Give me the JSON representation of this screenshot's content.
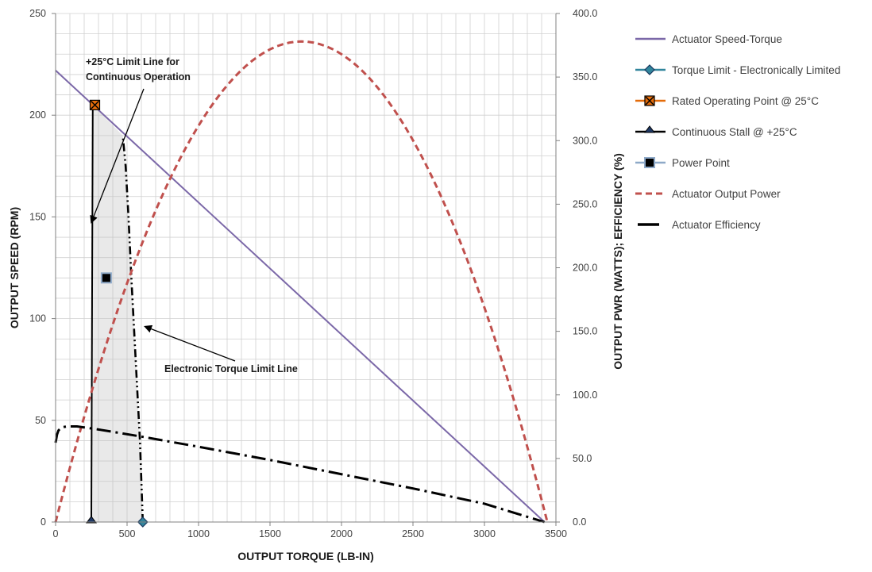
{
  "chart_data": {
    "type": "line",
    "xlabel": "OUTPUT TORQUE (LB-IN)",
    "ylabel_left": "OUTPUT SPEED (RPM)",
    "ylabel_right": "OUTPUT PWR (WATTS); EFFICIENCY (%)",
    "xlim": [
      0,
      3500
    ],
    "ylim_left": [
      0,
      250
    ],
    "ylim_right": [
      0,
      400
    ],
    "x_ticks": [
      "0",
      "500",
      "1000",
      "1500",
      "2000",
      "2500",
      "3000",
      "3500"
    ],
    "y_left_ticks": [
      "0",
      "50",
      "100",
      "150",
      "200",
      "250"
    ],
    "y_right_ticks": [
      "0.0",
      "50.0",
      "100.0",
      "150.0",
      "200.0",
      "250.0",
      "300.0",
      "350.0",
      "400.0"
    ],
    "grid": true,
    "legend_position": "right",
    "series": [
      {
        "name": "Actuator Speed-Torque",
        "axis": "left",
        "color": "#7b68a8",
        "style": "solid",
        "marker": "none",
        "x": [
          0,
          3420
        ],
        "y": [
          222,
          0
        ]
      },
      {
        "name": "Torque Limit - Electronically  Limited",
        "axis": "left",
        "color": "#31859c",
        "style": "solid",
        "marker": "diamond",
        "x": [
          610
        ],
        "y": [
          0
        ]
      },
      {
        "name": "Rated Operating Point @ 25°C",
        "axis": "left",
        "color": "#e46c0a",
        "style": "solid",
        "marker": "x-square",
        "x": [
          275
        ],
        "y": [
          205
        ]
      },
      {
        "name": "Continuous Stall @ +25°C",
        "axis": "left",
        "color": "#000000",
        "style": "solid",
        "marker": "triangle",
        "x": [
          250
        ],
        "y": [
          0
        ]
      },
      {
        "name": "Power Point",
        "axis": "left",
        "color": "#8ea9c8",
        "style": "solid",
        "marker": "square",
        "x": [
          355
        ],
        "y": [
          120
        ]
      },
      {
        "name": "Actuator Output Power",
        "axis": "right",
        "color": "#c0504d",
        "style": "dashed",
        "marker": "none",
        "x": [
          0,
          3440
        ],
        "y": [
          0,
          0
        ],
        "peak": [
          1720,
          378
        ]
      },
      {
        "name": "Actuator Efficiency",
        "axis": "left",
        "color": "#000000",
        "style": "dash-dot",
        "marker": "none",
        "x": [
          0,
          10,
          20,
          40,
          80,
          150,
          300,
          600,
          1000,
          1500,
          2000,
          2500,
          3000,
          3420
        ],
        "y": [
          39,
          43,
          45,
          46.5,
          47,
          47,
          45.5,
          42,
          37,
          30.5,
          23.5,
          16.5,
          9,
          0
        ]
      }
    ],
    "limit_lines": [
      {
        "name": "continuous-limit-line",
        "x": [
          250,
          260
        ],
        "y": [
          0,
          205
        ]
      },
      {
        "name": "electronic-limit-line",
        "x": [
          610,
          590,
          560,
          530,
          510,
          490,
          470
        ],
        "y": [
          0,
          40,
          80,
          120,
          150,
          175,
          190
        ]
      }
    ],
    "annotations": [
      {
        "lines": [
          "+25°C Limit Line for",
          "Continuous Operation"
        ],
        "anchor": [
          240,
          218
        ],
        "arrow_to": [
          262,
          163
        ]
      },
      {
        "lines": [
          "Electronic Torque Limit Line"
        ],
        "anchor": [
          780,
          80
        ],
        "arrow_to": [
          555,
          98
        ]
      }
    ],
    "legend": [
      {
        "label": "Actuator Speed-Torque",
        "color": "#7b68a8",
        "kind": "line"
      },
      {
        "label": "Torque Limit - Electronically  Limited",
        "color": "#31859c",
        "kind": "diamond"
      },
      {
        "label": "Rated Operating Point @ 25°C",
        "color": "#e46c0a",
        "kind": "x-square"
      },
      {
        "label": "Continuous Stall @ +25°C",
        "color": "#000000",
        "kind": "triangle"
      },
      {
        "label": "Power Point",
        "color": "#8ea9c8",
        "kind": "square"
      },
      {
        "label": "Actuator Output Power",
        "color": "#c0504d",
        "kind": "dashed"
      },
      {
        "label": "Actuator Efficiency",
        "color": "#000000",
        "kind": "longdash"
      }
    ]
  }
}
